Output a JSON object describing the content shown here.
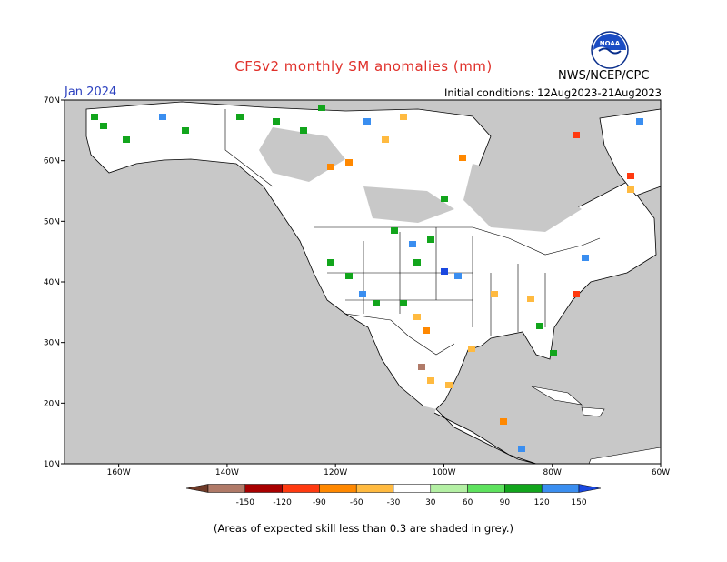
{
  "title": "CFSv2 monthly SM anomalies (mm)",
  "month": "Jan 2024",
  "initial_conditions": "Initial conditions: 12Aug2023-21Aug2023",
  "agency": "NWS/NCEP/CPC",
  "logo_text": "NOAA",
  "footnote": "(Areas of expected skill less than 0.3 are shaded in grey.)",
  "map": {
    "lon_range": [
      -170,
      -60
    ],
    "lat_range": [
      10,
      70
    ],
    "lon_ticks": [
      -160,
      -140,
      -120,
      -100,
      -80,
      -60
    ],
    "lon_tick_labels": [
      "160W",
      "140W",
      "120W",
      "100W",
      "80W",
      "60W"
    ],
    "lat_ticks": [
      10,
      20,
      30,
      40,
      50,
      60,
      70
    ],
    "lat_tick_labels": [
      "10N",
      "20N",
      "30N",
      "40N",
      "50N",
      "60N",
      "70N"
    ],
    "low_skill_color": "#c8c8c8",
    "land_color": "#ffffff"
  },
  "legend": {
    "bins": [
      {
        "color": "#6e3a28"
      },
      {
        "color": "#b07a68"
      },
      {
        "color": "#a80000"
      },
      {
        "color": "#ff3a10"
      },
      {
        "color": "#ff8800"
      },
      {
        "color": "#ffba40"
      },
      {
        "color": "#ffffff"
      },
      {
        "color": "#b4f0a4"
      },
      {
        "color": "#5ee25e"
      },
      {
        "color": "#12a51c"
      },
      {
        "color": "#3a8ef0"
      },
      {
        "color": "#1a48e0"
      }
    ],
    "labels": [
      "-150",
      "-120",
      "-90",
      "-60",
      "-30",
      "30",
      "60",
      "90",
      "120",
      "150"
    ]
  }
}
